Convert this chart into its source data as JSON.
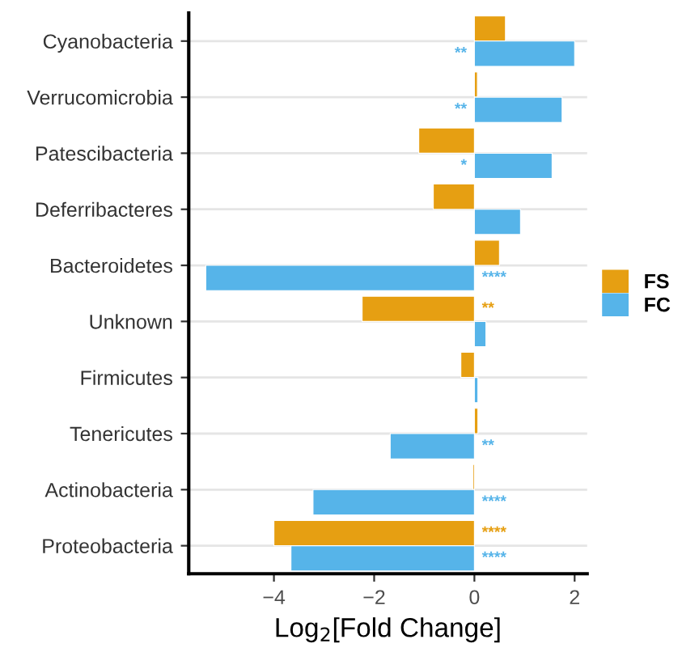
{
  "chart_data": {
    "type": "bar",
    "orientation": "horizontal",
    "xlabel": "Log$_{2}$[Fold Change]",
    "categories": [
      "Cyanobacteria",
      "Verrucomicrobia",
      "Patescibacteria",
      "Deferribacteres",
      "Bacteroidetes",
      "Unknown",
      "Firmicutes",
      "Tenericutes",
      "Actinobacteria",
      "Proteobacteria"
    ],
    "series": [
      {
        "name": "FS",
        "color": "#e69f12",
        "values": [
          0.62,
          0.06,
          -1.11,
          -0.82,
          0.5,
          -2.24,
          -0.27,
          0.07,
          -0.03,
          -4.0
        ],
        "value_labels": [
          null,
          null,
          null,
          null,
          null,
          "**",
          null,
          null,
          null,
          "****"
        ]
      },
      {
        "name": "FC",
        "color": "#56b4e9",
        "values": [
          2.0,
          1.75,
          1.55,
          0.92,
          -5.36,
          0.23,
          0.07,
          -1.68,
          -3.22,
          -3.66
        ],
        "value_labels": [
          "**",
          "**",
          "*",
          null,
          "****",
          null,
          null,
          "**",
          "****",
          "****"
        ]
      }
    ],
    "xlim": [
      -5.7,
      2.25
    ],
    "xticks": [
      {
        "value": -4,
        "label": "−4"
      },
      {
        "value": -2,
        "label": "−2"
      },
      0,
      2
    ],
    "grid": "y",
    "legend": "right"
  }
}
